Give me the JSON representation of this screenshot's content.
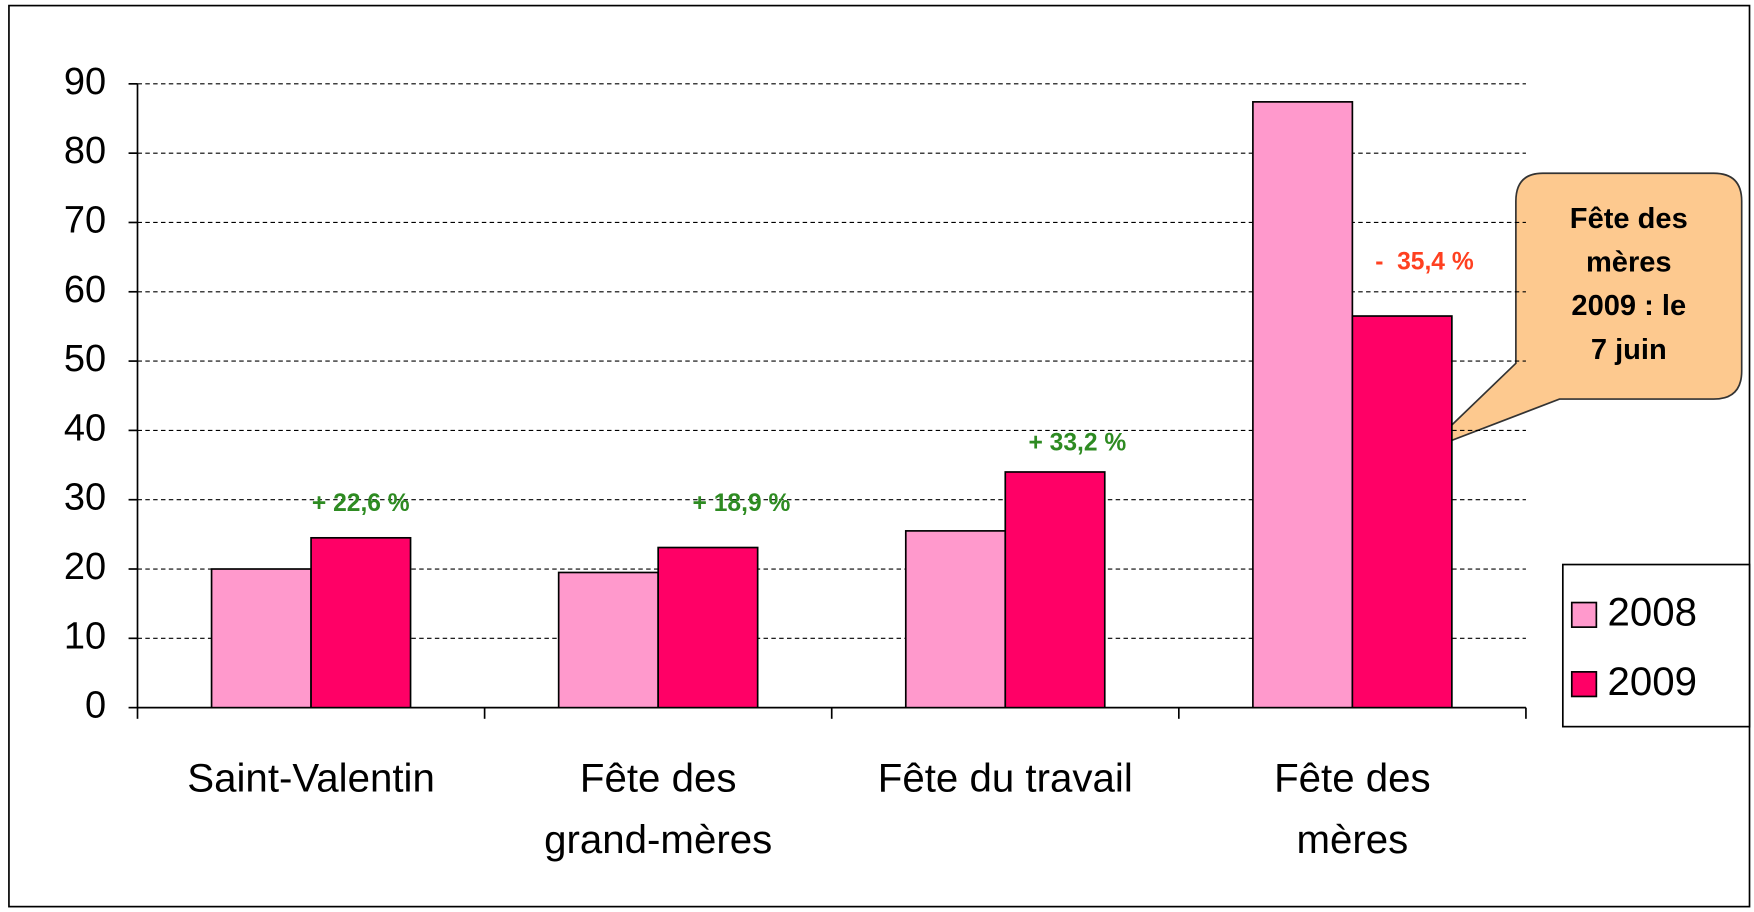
{
  "chart_data": {
    "type": "bar",
    "categories": [
      "Saint-Valentin",
      "Fête des\ngrand-mères",
      "Fête du travail",
      "Fête des\nmères"
    ],
    "series": [
      {
        "name": "2008",
        "color": "#ff99cc",
        "values": [
          20.0,
          19.5,
          25.5,
          87.4
        ]
      },
      {
        "name": "2009",
        "color": "#ff0066",
        "values": [
          24.5,
          23.1,
          34.0,
          56.5
        ]
      }
    ],
    "annotations": [
      {
        "text": "+ 22,6 %",
        "color": "#2e8b22"
      },
      {
        "text": "+ 18,9 %",
        "color": "#2e8b22"
      },
      {
        "text": "+ 33,2 %",
        "color": "#2e8b22"
      },
      {
        "text": "-  35,4 %",
        "color": "#ff4020"
      }
    ],
    "callout": "Fête des\nmères\n2009 : le\n7 juin",
    "ylim": [
      0,
      90
    ],
    "yticks": [
      0,
      10,
      20,
      30,
      40,
      50,
      60,
      70,
      80,
      90
    ],
    "grid": true,
    "legend": "right"
  }
}
